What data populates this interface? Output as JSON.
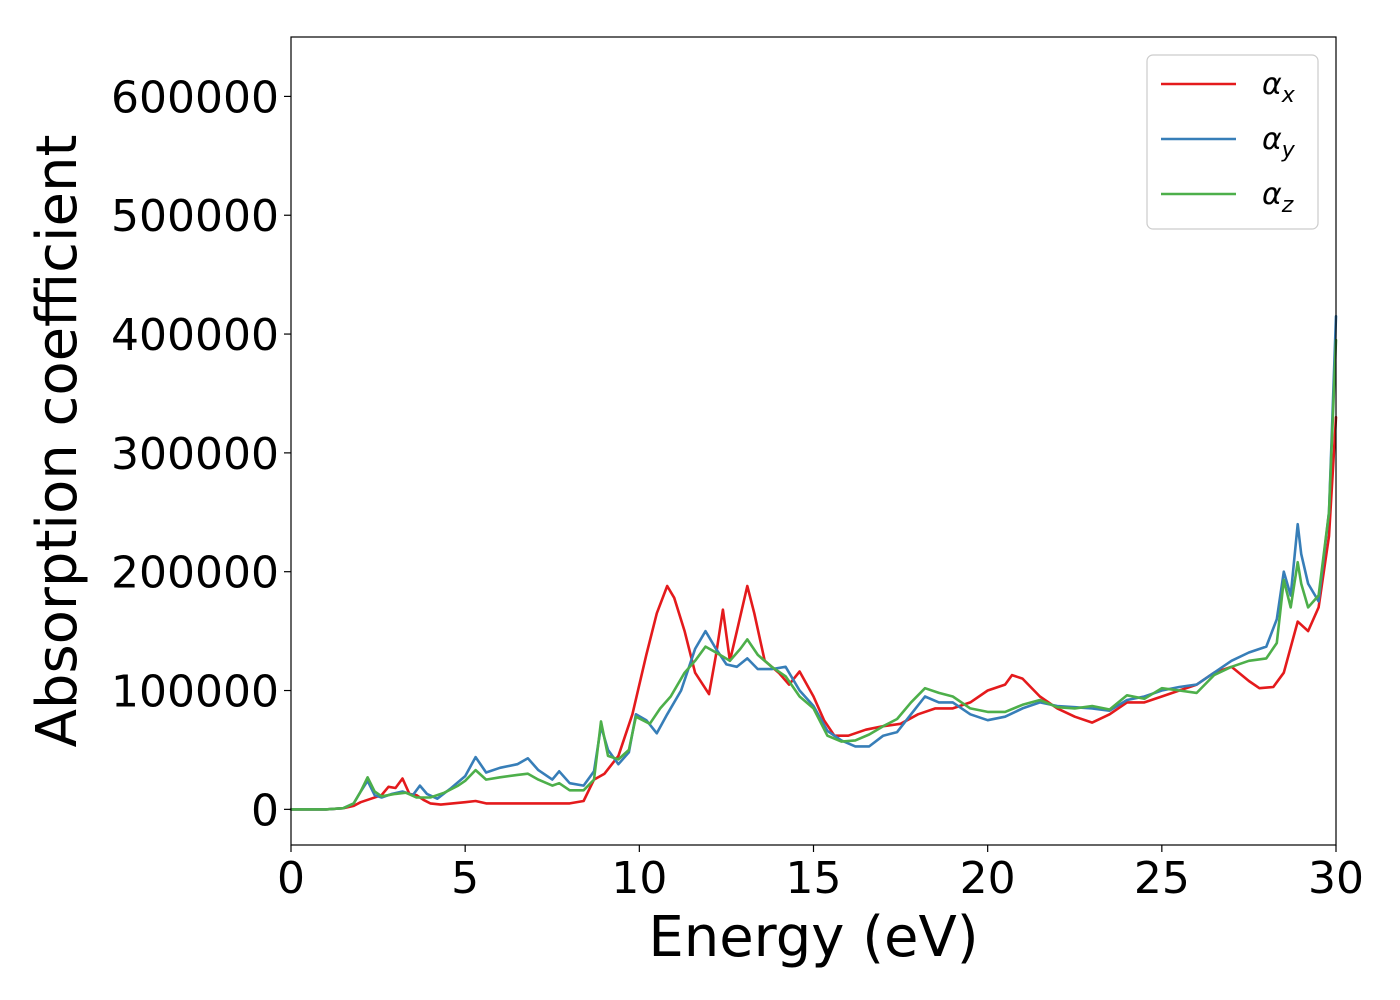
{
  "chart_data": {
    "type": "line",
    "title": "",
    "xlabel": "Energy (eV)",
    "ylabel": "Absorption coefficient",
    "xlim": [
      0,
      30
    ],
    "ylim": [
      -30000,
      650000
    ],
    "xticks": [
      0,
      5,
      10,
      15,
      20,
      25,
      30
    ],
    "yticks": [
      0,
      100000,
      200000,
      300000,
      400000,
      500000,
      600000
    ],
    "grid": false,
    "legend_position": "top-right",
    "series": [
      {
        "name": "αx",
        "legend_symbol": "α",
        "legend_subscript": "x",
        "color": "#e41a1c",
        "x": [
          0,
          1,
          1.5,
          1.8,
          2.0,
          2.3,
          2.6,
          2.8,
          3.0,
          3.2,
          3.4,
          3.6,
          3.8,
          4.0,
          4.3,
          5.0,
          5.3,
          5.6,
          6.0,
          7.0,
          8.0,
          8.4,
          8.7,
          9.0,
          9.4,
          9.8,
          10.2,
          10.5,
          10.8,
          11.0,
          11.3,
          11.6,
          12.0,
          12.2,
          12.4,
          12.6,
          12.8,
          13.1,
          13.3,
          13.6,
          14.0,
          14.3,
          14.6,
          15.0,
          15.3,
          15.6,
          16.0,
          16.5,
          17.0,
          17.5,
          18.0,
          18.5,
          19.0,
          19.5,
          20.0,
          20.5,
          20.7,
          21.0,
          21.5,
          22.0,
          22.5,
          23.0,
          23.5,
          24.0,
          24.5,
          25.0,
          25.5,
          26.0,
          26.5,
          27.0,
          27.5,
          27.8,
          28.2,
          28.5,
          28.9,
          29.2,
          29.5,
          29.8,
          30.0
        ],
        "y": [
          0,
          0,
          1000,
          3000,
          6000,
          9000,
          12000,
          19000,
          18000,
          26000,
          13000,
          12000,
          8000,
          5000,
          4000,
          6000,
          7000,
          5000,
          5000,
          5000,
          5000,
          7000,
          25000,
          30000,
          45000,
          80000,
          130000,
          165000,
          188000,
          178000,
          150000,
          115000,
          97000,
          130000,
          168000,
          125000,
          150000,
          188000,
          165000,
          125000,
          115000,
          105000,
          116000,
          95000,
          75000,
          62000,
          62000,
          67000,
          70000,
          72000,
          80000,
          85000,
          85000,
          90000,
          100000,
          105000,
          113000,
          110000,
          95000,
          85000,
          78000,
          73000,
          80000,
          90000,
          90000,
          95000,
          100000,
          105000,
          115000,
          120000,
          108000,
          102000,
          103000,
          115000,
          158000,
          150000,
          170000,
          230000,
          330000
        ]
      },
      {
        "name": "αy",
        "legend_symbol": "α",
        "legend_subscript": "y",
        "color": "#377eb8",
        "x": [
          0,
          1,
          1.5,
          1.8,
          2.0,
          2.2,
          2.4,
          2.6,
          2.9,
          3.2,
          3.5,
          3.7,
          3.9,
          4.2,
          4.6,
          5.0,
          5.3,
          5.6,
          6.0,
          6.5,
          6.8,
          7.1,
          7.5,
          7.7,
          8.0,
          8.4,
          8.7,
          8.9,
          9.1,
          9.4,
          9.7,
          9.9,
          10.2,
          10.5,
          10.8,
          11.2,
          11.6,
          11.9,
          12.2,
          12.5,
          12.8,
          13.1,
          13.4,
          13.8,
          14.2,
          14.6,
          15.0,
          15.4,
          15.8,
          16.2,
          16.6,
          17.0,
          17.4,
          17.8,
          18.2,
          18.6,
          19.0,
          19.5,
          20.0,
          20.5,
          21.0,
          21.5,
          22.0,
          22.5,
          23.0,
          23.5,
          24.0,
          24.5,
          25.0,
          25.5,
          26.0,
          26.5,
          27.0,
          27.5,
          28.0,
          28.3,
          28.5,
          28.7,
          28.9,
          29.0,
          29.2,
          29.5,
          29.8,
          30.0
        ],
        "y": [
          0,
          0,
          1000,
          5000,
          15000,
          24000,
          12000,
          10000,
          13000,
          15000,
          12000,
          20000,
          13000,
          9000,
          18000,
          28000,
          44000,
          31000,
          35000,
          38000,
          43000,
          33000,
          25000,
          32000,
          22000,
          20000,
          32000,
          70000,
          50000,
          38000,
          48000,
          80000,
          75000,
          64000,
          80000,
          100000,
          135000,
          150000,
          135000,
          122000,
          120000,
          127000,
          118000,
          118000,
          120000,
          100000,
          87000,
          66000,
          58000,
          53000,
          53000,
          62000,
          65000,
          80000,
          95000,
          90000,
          90000,
          80000,
          75000,
          78000,
          85000,
          90000,
          87000,
          86000,
          85000,
          83000,
          92000,
          95000,
          100000,
          103000,
          105000,
          115000,
          125000,
          132000,
          137000,
          160000,
          200000,
          180000,
          240000,
          215000,
          190000,
          175000,
          250000,
          415000
        ]
      },
      {
        "name": "αz",
        "legend_symbol": "α",
        "legend_subscript": "z",
        "color": "#4daf4a",
        "x": [
          0,
          1,
          1.5,
          1.8,
          2.0,
          2.2,
          2.4,
          2.6,
          3.0,
          3.3,
          3.6,
          4.0,
          4.4,
          4.8,
          5.0,
          5.3,
          5.6,
          6.0,
          6.5,
          6.8,
          7.1,
          7.5,
          7.7,
          8.0,
          8.4,
          8.7,
          8.9,
          9.1,
          9.4,
          9.7,
          9.9,
          10.3,
          10.6,
          10.9,
          11.3,
          11.6,
          11.9,
          12.2,
          12.6,
          12.9,
          13.1,
          13.4,
          13.8,
          14.2,
          14.6,
          15.0,
          15.4,
          15.8,
          16.2,
          16.6,
          17.0,
          17.4,
          17.8,
          18.2,
          18.6,
          19.0,
          19.5,
          20.0,
          20.5,
          21.0,
          21.5,
          22.0,
          22.5,
          23.0,
          23.5,
          24.0,
          24.5,
          25.0,
          25.5,
          26.0,
          26.5,
          27.0,
          27.5,
          28.0,
          28.3,
          28.5,
          28.7,
          28.9,
          29.0,
          29.2,
          29.5,
          29.8,
          30.0
        ],
        "y": [
          0,
          0,
          1000,
          5000,
          15000,
          27000,
          15000,
          11000,
          13000,
          14000,
          10000,
          10000,
          14000,
          20000,
          24000,
          33000,
          25000,
          27000,
          29000,
          30000,
          25000,
          20000,
          22000,
          16000,
          16000,
          25000,
          74000,
          45000,
          42000,
          50000,
          78000,
          72000,
          85000,
          95000,
          115000,
          125000,
          137000,
          132000,
          125000,
          135000,
          143000,
          130000,
          120000,
          112000,
          95000,
          85000,
          62000,
          57000,
          58000,
          63000,
          70000,
          76000,
          90000,
          102000,
          98000,
          95000,
          85000,
          82000,
          82000,
          88000,
          92000,
          86000,
          85000,
          87000,
          84000,
          96000,
          93000,
          102000,
          100000,
          98000,
          113000,
          120000,
          125000,
          127000,
          140000,
          193000,
          170000,
          208000,
          190000,
          170000,
          180000,
          250000,
          395000
        ]
      }
    ]
  }
}
